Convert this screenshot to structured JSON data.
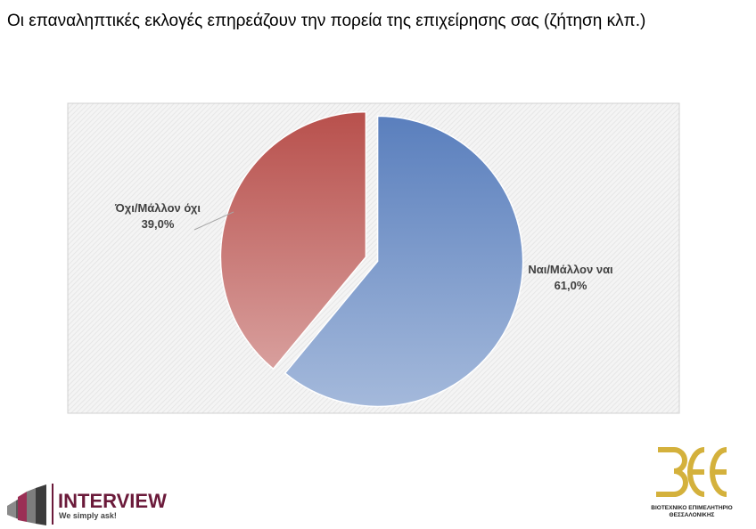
{
  "chart_data": {
    "type": "pie",
    "title": "Οι επαναληπτικές εκλογές επηρεάζουν την πορεία της επιχείρησης σας (ζήτηση κλπ.)",
    "categories": [
      "Ναι/Μάλλον ναι",
      "Όχι/Μάλλον όχι"
    ],
    "values": [
      61.0,
      39.0
    ],
    "value_labels": [
      "61,0%",
      "39,0%"
    ],
    "colors": [
      "#5a7fbd",
      "#b8504c"
    ]
  },
  "logos": {
    "interview": {
      "name": "INTERVIEW",
      "tagline": "We simply ask!"
    },
    "bee": {
      "line1": "ΒΙΟΤΕΧΝΙΚΟ  ΕΠΙΜΕΛΗΤΗΡΙΟ",
      "line2": "ΘΕΣΣΑΛΟΝΙΚΗΣ"
    }
  }
}
